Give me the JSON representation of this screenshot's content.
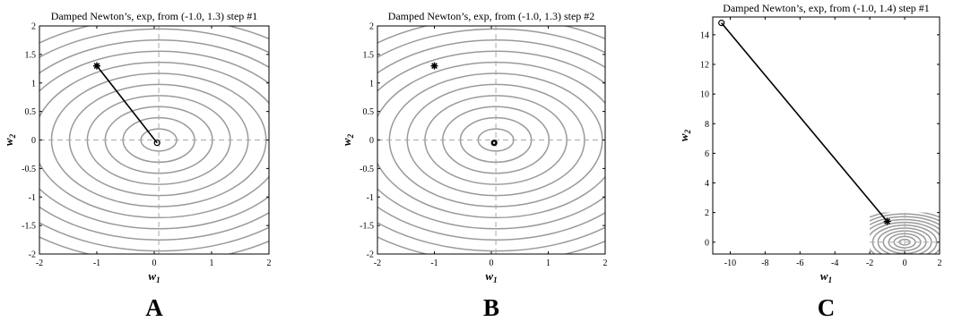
{
  "chart_data": [
    {
      "type": "line",
      "title": "Damped Newton’s, exp, from (-1.0, 1.3) step #1",
      "panel_label": "A",
      "xlabel": "w",
      "xlabel_sub": "1",
      "ylabel": "w",
      "ylabel_sub": "2",
      "xlim": [
        -2,
        2
      ],
      "ylim": [
        -2,
        2
      ],
      "xticks": [
        "-2",
        "-1",
        "0",
        "1",
        "2"
      ],
      "yticks": [
        "-2",
        "-1.5",
        "-1",
        "-0.5",
        "0",
        "0.5",
        "1",
        "1.5",
        "2"
      ],
      "contour_levels": 11,
      "contour_center": [
        0.08,
        0
      ],
      "contour_aspect": 1.6,
      "star_point": [
        -1.0,
        1.3
      ],
      "path": [
        [
          -1.0,
          1.3
        ],
        [
          0.05,
          -0.05
        ]
      ],
      "circle_points": [
        [
          0.05,
          -0.05
        ]
      ]
    },
    {
      "type": "line",
      "title": "Damped Newton’s, exp, from (-1.0, 1.3) step #2",
      "panel_label": "B",
      "xlabel": "w",
      "xlabel_sub": "1",
      "ylabel": "w",
      "ylabel_sub": "2",
      "xlim": [
        -2,
        2
      ],
      "ylim": [
        -2,
        2
      ],
      "xticks": [
        "-2",
        "-1",
        "0",
        "1",
        "2"
      ],
      "yticks": [
        "-2",
        "-1.5",
        "-1",
        "-0.5",
        "0",
        "0.5",
        "1",
        "1.5",
        "2"
      ],
      "contour_levels": 11,
      "contour_center": [
        0.08,
        0
      ],
      "contour_aspect": 1.6,
      "star_point": [
        -1.0,
        1.3
      ],
      "path": [],
      "circle_points": [
        [
          0.05,
          -0.05
        ],
        [
          0.05,
          -0.05
        ]
      ]
    },
    {
      "type": "line",
      "title": "Damped Newton’s, exp, from (-1.0, 1.4) step #1",
      "panel_label": "C",
      "xlabel": "w",
      "xlabel_sub": "1",
      "ylabel": "w",
      "ylabel_sub": "2",
      "xlim": [
        -11,
        2
      ],
      "ylim": [
        -0.8,
        15.2
      ],
      "xticks": [
        "-10",
        "-8",
        "-6",
        "-4",
        "-2",
        "0",
        "2"
      ],
      "xtick_values": [
        -10,
        -8,
        -6,
        -4,
        -2,
        0,
        2
      ],
      "yticks": [
        "0",
        "2",
        "4",
        "6",
        "8",
        "10",
        "12",
        "14"
      ],
      "ytick_values": [
        0,
        2,
        4,
        6,
        8,
        10,
        12,
        14
      ],
      "contour_levels": 11,
      "contour_center": [
        0,
        0
      ],
      "contour_aspect": 1.6,
      "contour_box": [
        -2,
        2,
        -2,
        2
      ],
      "star_point": [
        -1.0,
        1.4
      ],
      "path": [
        [
          -1.0,
          1.4
        ],
        [
          -10.5,
          14.8
        ]
      ],
      "circle_points": [
        [
          -10.5,
          14.8
        ]
      ]
    }
  ]
}
